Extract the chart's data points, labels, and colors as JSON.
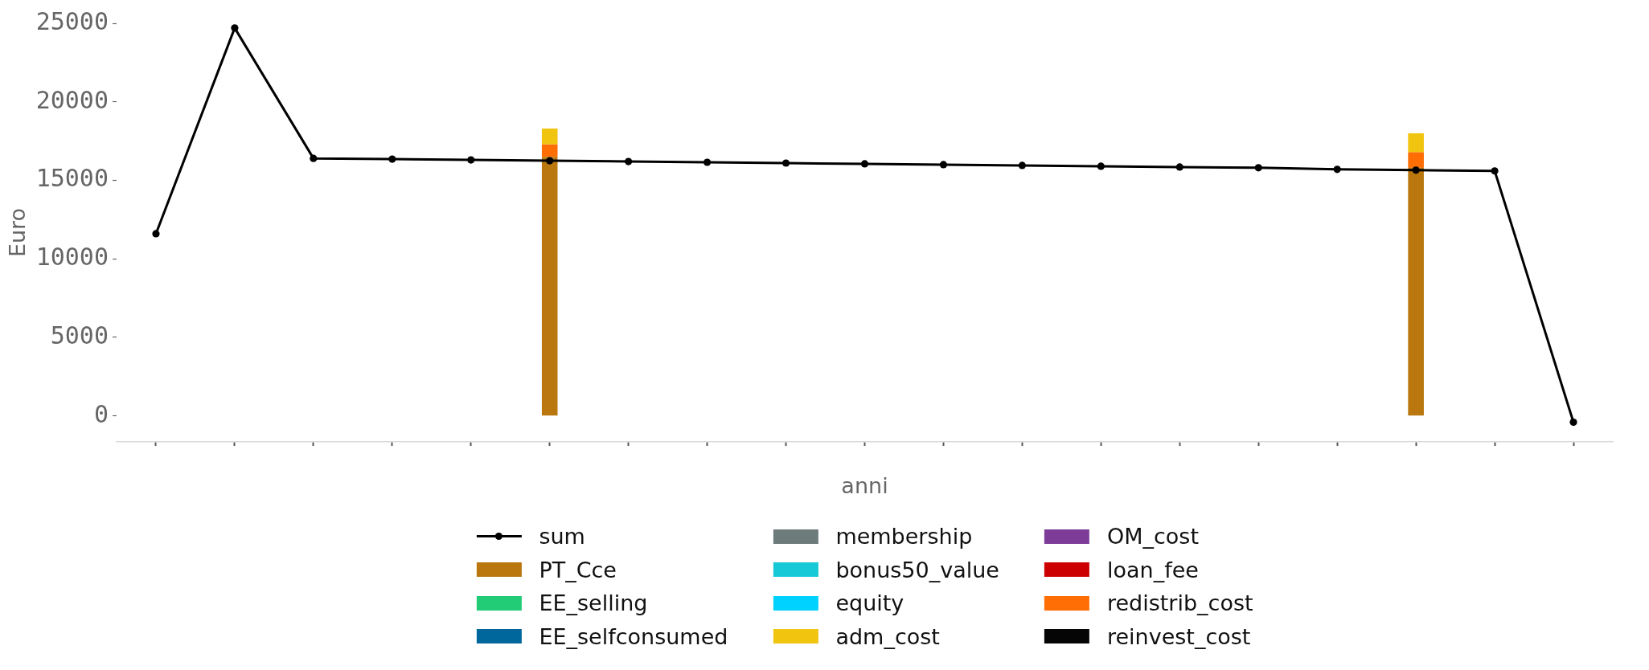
{
  "chart_data": {
    "type": "bar",
    "xlabel": "anni",
    "ylabel": "Euro",
    "categories": [
      null,
      null,
      null,
      null,
      null,
      null,
      null,
      null,
      null,
      null,
      null,
      null,
      null,
      null,
      null,
      null,
      null,
      null,
      null
    ],
    "ylim": [
      -1650,
      25000
    ],
    "yticks": [
      0,
      5000,
      10000,
      15000,
      20000,
      25000
    ],
    "tick_labels": "y",
    "legend": "bottom",
    "series": [
      {
        "name": "sum",
        "type": "line",
        "color": "#000000",
        "marker": "circle",
        "values": [
          11600,
          24700,
          16400,
          16350,
          16300,
          16250,
          16200,
          16150,
          16100,
          16050,
          16000,
          15950,
          15900,
          15850,
          15800,
          15700,
          15650,
          15600,
          -400
        ]
      },
      {
        "name": "PT_Cce",
        "color": "#b9770e",
        "values": [
          null,
          null,
          null,
          null,
          null,
          16500,
          null,
          null,
          null,
          null,
          null,
          null,
          null,
          null,
          null,
          null,
          15800,
          null,
          null
        ]
      },
      {
        "name": "EE_selling",
        "color": "#22cc77",
        "values": [
          null,
          null,
          null,
          null,
          null,
          null,
          null,
          null,
          null,
          null,
          null,
          null,
          null,
          null,
          null,
          null,
          null,
          null,
          null
        ]
      },
      {
        "name": "EE_selfconsumed",
        "color": "#00679c",
        "values": [
          null,
          null,
          null,
          null,
          null,
          null,
          null,
          null,
          null,
          null,
          null,
          null,
          null,
          null,
          null,
          null,
          null,
          null,
          null
        ]
      },
      {
        "name": "membership",
        "color": "#6e7b7b",
        "values": [
          null,
          null,
          null,
          null,
          null,
          null,
          null,
          null,
          null,
          null,
          null,
          null,
          null,
          null,
          null,
          null,
          null,
          null,
          null
        ]
      },
      {
        "name": "bonus50_value",
        "color": "#17c8d6",
        "values": [
          null,
          null,
          null,
          null,
          null,
          null,
          null,
          null,
          null,
          null,
          null,
          null,
          null,
          null,
          null,
          null,
          null,
          null,
          null
        ]
      },
      {
        "name": "equity",
        "color": "#00d2ff",
        "values": [
          null,
          null,
          null,
          null,
          null,
          null,
          null,
          null,
          null,
          null,
          null,
          null,
          null,
          null,
          null,
          null,
          null,
          null,
          null
        ]
      },
      {
        "name": "adm_cost",
        "color": "#f1c40f",
        "base": [
          null,
          null,
          null,
          null,
          null,
          17300,
          null,
          null,
          null,
          null,
          null,
          null,
          null,
          null,
          null,
          null,
          16800,
          null,
          null
        ],
        "values": [
          null,
          null,
          null,
          null,
          null,
          1000,
          null,
          null,
          null,
          null,
          null,
          null,
          null,
          null,
          null,
          null,
          1200,
          null,
          null
        ]
      },
      {
        "name": "OM_cost",
        "color": "#7d3c98",
        "values": [
          null,
          null,
          null,
          null,
          null,
          null,
          null,
          null,
          null,
          null,
          null,
          null,
          null,
          null,
          null,
          null,
          null,
          null,
          null
        ]
      },
      {
        "name": "loan_fee",
        "color": "#cc0000",
        "values": [
          null,
          null,
          null,
          null,
          null,
          null,
          null,
          null,
          null,
          null,
          null,
          null,
          null,
          null,
          null,
          null,
          null,
          null,
          null
        ]
      },
      {
        "name": "redistrib_cost",
        "color": "#ff6d05",
        "base": [
          null,
          null,
          null,
          null,
          null,
          16500,
          null,
          null,
          null,
          null,
          null,
          null,
          null,
          null,
          null,
          null,
          15800,
          null,
          null
        ],
        "values": [
          null,
          null,
          null,
          null,
          null,
          800,
          null,
          null,
          null,
          null,
          null,
          null,
          null,
          null,
          null,
          null,
          1000,
          null,
          null
        ]
      },
      {
        "name": "reinvest_cost",
        "color": "#050505",
        "values": [
          null,
          null,
          null,
          null,
          null,
          null,
          null,
          null,
          null,
          null,
          null,
          null,
          null,
          null,
          null,
          null,
          null,
          null,
          null
        ]
      }
    ]
  }
}
